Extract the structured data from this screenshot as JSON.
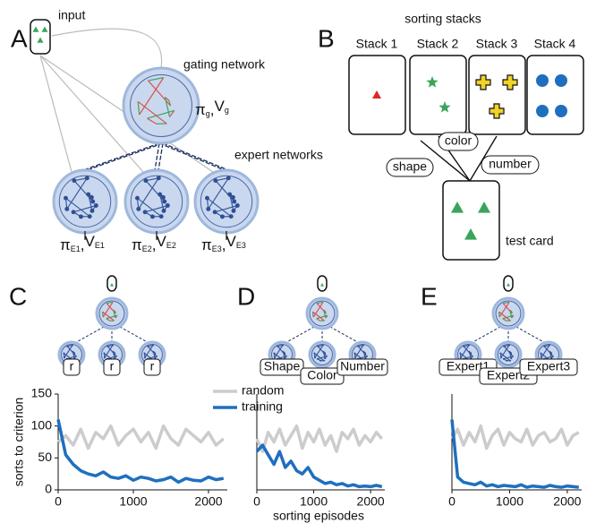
{
  "panel_labels": [
    "A",
    "B",
    "C",
    "D",
    "E"
  ],
  "diagram_a": {
    "input": "input",
    "gating": "gating network",
    "gating_output": {
      "pi": "π",
      "pi_sub": "g",
      "sep": ",",
      "value": "V",
      "value_sub": "g"
    },
    "experts": "expert networks",
    "expert_outputs": [
      {
        "pi": "π",
        "pi_sub": "E1",
        "sep": ",",
        "value": "V",
        "value_sub": "E1"
      },
      {
        "pi": "π",
        "pi_sub": "E2",
        "sep": ",",
        "value": "V",
        "value_sub": "E2"
      },
      {
        "pi": "π",
        "pi_sub": "E3",
        "sep": ",",
        "value": "V",
        "value_sub": "E3"
      }
    ]
  },
  "diagram_b": {
    "title": "sorting stacks",
    "stacks": [
      "Stack 1",
      "Stack 2",
      "Stack 3",
      "Stack 4"
    ],
    "rules": [
      "shape",
      "color",
      "number"
    ],
    "test_card": "test card"
  },
  "mini_diagrams": [
    [
      "r",
      "r",
      "r"
    ],
    [
      "Shape",
      "Color",
      "Number"
    ],
    [
      "Expert1",
      "Expert2",
      "Expert3"
    ]
  ],
  "chart_data": [
    {
      "type": "line",
      "y_label": "sorts to criterion",
      "x": [
        0,
        100,
        200,
        300,
        400,
        500,
        600,
        700,
        800,
        900,
        1000,
        1100,
        1200,
        1300,
        1400,
        1500,
        1600,
        1700,
        1800,
        1900,
        2000,
        2100,
        2200
      ],
      "xlim": [
        0,
        2250
      ],
      "xticks": [
        0,
        1000,
        2000
      ],
      "ylim": [
        0,
        150
      ],
      "yticks": [
        0,
        50,
        100,
        150
      ],
      "series": [
        {
          "name": "random",
          "color": "#cccccc",
          "values": [
            75,
            85,
            70,
            95,
            65,
            90,
            80,
            100,
            70,
            85,
            95,
            75,
            90,
            65,
            100,
            80,
            70,
            95,
            85,
            75,
            90,
            70,
            80
          ]
        },
        {
          "name": "training",
          "color": "#1f6fbf",
          "values": [
            110,
            55,
            40,
            30,
            25,
            22,
            28,
            20,
            18,
            22,
            15,
            20,
            18,
            14,
            16,
            20,
            12,
            18,
            15,
            14,
            20,
            16,
            18
          ]
        }
      ]
    },
    {
      "type": "line",
      "x_label": "sorting episodes",
      "x": [
        0,
        100,
        200,
        300,
        400,
        500,
        600,
        700,
        800,
        900,
        1000,
        1100,
        1200,
        1300,
        1400,
        1500,
        1600,
        1700,
        1800,
        1900,
        2000,
        2100,
        2200
      ],
      "xlim": [
        0,
        2250
      ],
      "xticks": [
        0,
        1000,
        2000
      ],
      "ylim": [
        0,
        150
      ],
      "series": [
        {
          "color": "#cccccc",
          "values": [
            80,
            60,
            90,
            75,
            95,
            70,
            85,
            100,
            65,
            90,
            75,
            95,
            70,
            85,
            60,
            90,
            80,
            95,
            70,
            85,
            75,
            90,
            80
          ]
        },
        {
          "color": "#1f6fbf",
          "values": [
            60,
            70,
            55,
            40,
            60,
            35,
            45,
            30,
            25,
            35,
            20,
            15,
            10,
            12,
            8,
            10,
            6,
            8,
            5,
            6,
            5,
            7,
            5
          ]
        }
      ]
    },
    {
      "type": "line",
      "x": [
        0,
        100,
        200,
        300,
        400,
        500,
        600,
        700,
        800,
        900,
        1000,
        1100,
        1200,
        1300,
        1400,
        1500,
        1600,
        1700,
        1800,
        1900,
        2000,
        2100,
        2200
      ],
      "xlim": [
        0,
        2250
      ],
      "xticks": [
        0,
        1000,
        2000
      ],
      "ylim": [
        0,
        150
      ],
      "series": [
        {
          "color": "#cccccc",
          "values": [
            80,
            95,
            70,
            90,
            75,
            100,
            65,
            85,
            95,
            70,
            90,
            80,
            75,
            95,
            70,
            85,
            90,
            75,
            80,
            95,
            70,
            85,
            90
          ]
        },
        {
          "color": "#1f6fbf",
          "values": [
            110,
            20,
            12,
            10,
            8,
            12,
            6,
            8,
            5,
            7,
            6,
            5,
            8,
            4,
            6,
            5,
            4,
            7,
            5,
            4,
            6,
            5,
            4
          ]
        }
      ]
    }
  ]
}
